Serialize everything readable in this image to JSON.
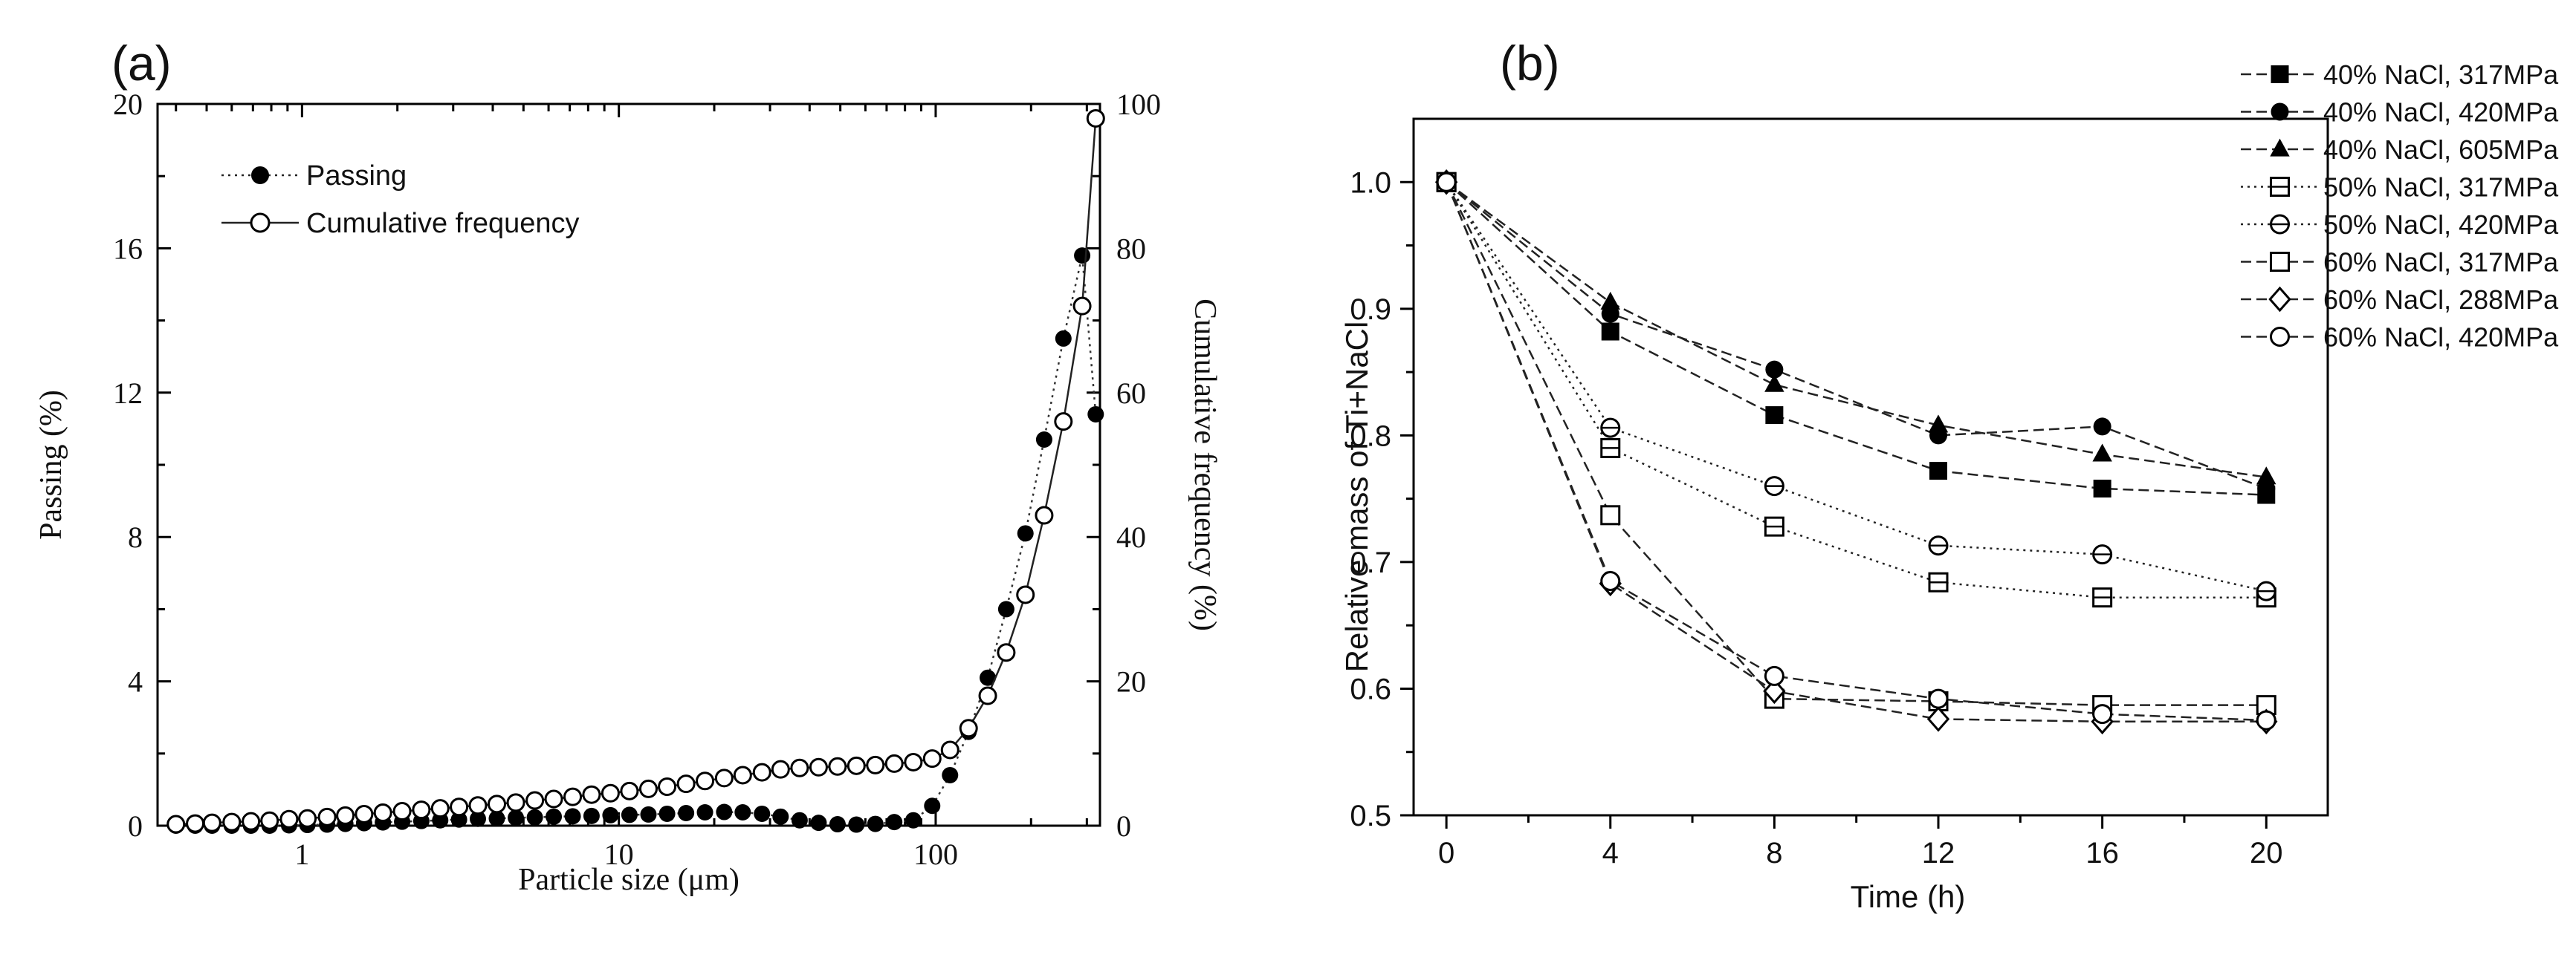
{
  "chart_data": [
    {
      "type": "scatter",
      "panel_label": "(a)",
      "xlabel": "Particle size (μm)",
      "ylabel": "Passing (%)",
      "y2label": "Cumulative frequency (%)",
      "xscale": "log",
      "xlim": [
        0.35,
        330
      ],
      "ylim": [
        0,
        20
      ],
      "y2lim": [
        0,
        100
      ],
      "x_ticks": [
        1,
        10,
        100
      ],
      "x_tick_labels": [
        "1",
        "10",
        "100"
      ],
      "y_ticks": [
        0,
        4,
        8,
        12,
        16,
        20
      ],
      "y_tick_labels": [
        "0",
        "4",
        "8",
        "12",
        "16",
        "20"
      ],
      "y2_ticks": [
        0,
        20,
        40,
        60,
        80,
        100
      ],
      "y2_tick_labels": [
        "0",
        "20",
        "40",
        "60",
        "80",
        "100"
      ],
      "legend_position": "top-left",
      "series": [
        {
          "name": "Passing",
          "axis": "left",
          "marker": "filled-circle",
          "line": "dotted",
          "x": [
            0.4,
            0.46,
            0.52,
            0.6,
            0.69,
            0.79,
            0.91,
            1.04,
            1.2,
            1.37,
            1.57,
            1.8,
            2.07,
            2.38,
            2.73,
            3.13,
            3.59,
            4.12,
            4.73,
            5.43,
            6.23,
            7.15,
            8.2,
            9.41,
            10.8,
            12.4,
            14.2,
            16.3,
            18.7,
            21.5,
            24.6,
            28.3,
            32.4,
            37.2,
            42.7,
            49,
            56.2,
            64.5,
            74,
            85,
            97.5,
            111,
            127,
            146,
            167,
            192,
            220,
            253,
            290,
            320
          ],
          "y": [
            0,
            0,
            0,
            0,
            0,
            0,
            0.01,
            0.02,
            0.03,
            0.05,
            0.07,
            0.09,
            0.11,
            0.13,
            0.15,
            0.17,
            0.19,
            0.2,
            0.22,
            0.23,
            0.25,
            0.26,
            0.27,
            0.29,
            0.3,
            0.31,
            0.33,
            0.35,
            0.37,
            0.38,
            0.37,
            0.33,
            0.25,
            0.15,
            0.08,
            0.04,
            0.03,
            0.05,
            0.1,
            0.15,
            0.55,
            1.4,
            2.6,
            4.1,
            6,
            8.1,
            10.7,
            13.5,
            15.8,
            11.4
          ]
        },
        {
          "name": "Cumulative frequency",
          "axis": "right",
          "marker": "open-circle",
          "line": "solid",
          "x": [
            0.4,
            0.46,
            0.52,
            0.6,
            0.69,
            0.79,
            0.91,
            1.04,
            1.2,
            1.37,
            1.57,
            1.8,
            2.07,
            2.38,
            2.73,
            3.13,
            3.59,
            4.12,
            4.73,
            5.43,
            6.23,
            7.15,
            8.2,
            9.41,
            10.8,
            12.4,
            14.2,
            16.3,
            18.7,
            21.5,
            24.6,
            28.3,
            32.4,
            37.2,
            42.7,
            49,
            56.2,
            64.5,
            74,
            85,
            97.5,
            111,
            127,
            146,
            167,
            192,
            220,
            253,
            290,
            320
          ],
          "y": [
            0.2,
            0.3,
            0.4,
            0.5,
            0.6,
            0.7,
            0.9,
            1.0,
            1.2,
            1.4,
            1.6,
            1.8,
            2.0,
            2.2,
            2.4,
            2.6,
            2.8,
            3.0,
            3.2,
            3.5,
            3.7,
            4.0,
            4.3,
            4.5,
            4.8,
            5.1,
            5.4,
            5.8,
            6.2,
            6.6,
            7.0,
            7.4,
            7.8,
            8.0,
            8.1,
            8.2,
            8.3,
            8.4,
            8.6,
            8.8,
            9.3,
            10.5,
            13.5,
            18.0,
            24.0,
            32.0,
            43.0,
            56.0,
            72.0,
            98.0
          ]
        }
      ]
    },
    {
      "type": "line",
      "panel_label": "(b)",
      "xlabel": "Time (h)",
      "ylabel": "Relative mass of Ti+NaCl",
      "xlim": [
        -0.8,
        21.5
      ],
      "ylim": [
        0.5,
        1.05
      ],
      "x_ticks": [
        0,
        4,
        8,
        12,
        16,
        20
      ],
      "x_tick_labels": [
        "0",
        "4",
        "8",
        "12",
        "16",
        "20"
      ],
      "y_ticks": [
        0.5,
        0.6,
        0.7,
        0.8,
        0.9,
        1.0
      ],
      "y_tick_labels": [
        "0.5",
        "0.6",
        "0.7",
        "0.8",
        "0.9",
        "1.0"
      ],
      "legend_position": "top-right",
      "x": [
        0,
        4,
        8,
        12,
        16,
        20
      ],
      "series": [
        {
          "name": "40% NaCl, 317MPa",
          "marker": "filled-square",
          "line": "dashed",
          "values": [
            1.0,
            0.882,
            0.816,
            0.772,
            0.758,
            0.753
          ]
        },
        {
          "name": "40% NaCl, 420MPa",
          "marker": "filled-circle",
          "line": "dashed",
          "values": [
            1.0,
            0.896,
            0.852,
            0.8,
            0.807,
            0.758
          ]
        },
        {
          "name": "40% NaCl, 605MPa",
          "marker": "filled-triangle",
          "line": "dashed",
          "values": [
            1.0,
            0.905,
            0.84,
            0.808,
            0.785,
            0.767
          ]
        },
        {
          "name": "50% NaCl, 317MPa",
          "marker": "open-square-cross",
          "line": "dotted",
          "values": [
            1.0,
            0.79,
            0.728,
            0.684,
            0.672,
            0.672
          ]
        },
        {
          "name": "50% NaCl, 420MPa",
          "marker": "open-circle-cross",
          "line": "dotted",
          "values": [
            1.0,
            0.806,
            0.76,
            0.713,
            0.706,
            0.677
          ]
        },
        {
          "name": "60% NaCl, 317MPa",
          "marker": "open-square",
          "line": "dashed",
          "values": [
            1.0,
            0.737,
            0.592,
            0.59,
            0.587,
            0.587
          ]
        },
        {
          "name": "60% NaCl, 288MPa",
          "marker": "open-diamond",
          "line": "dashed",
          "values": [
            1.0,
            0.683,
            0.598,
            0.576,
            0.574,
            0.574
          ]
        },
        {
          "name": "60% NaCl, 420MPa",
          "marker": "open-circle",
          "line": "dashed",
          "values": [
            1.0,
            0.685,
            0.61,
            0.592,
            0.58,
            0.575
          ]
        }
      ]
    }
  ]
}
